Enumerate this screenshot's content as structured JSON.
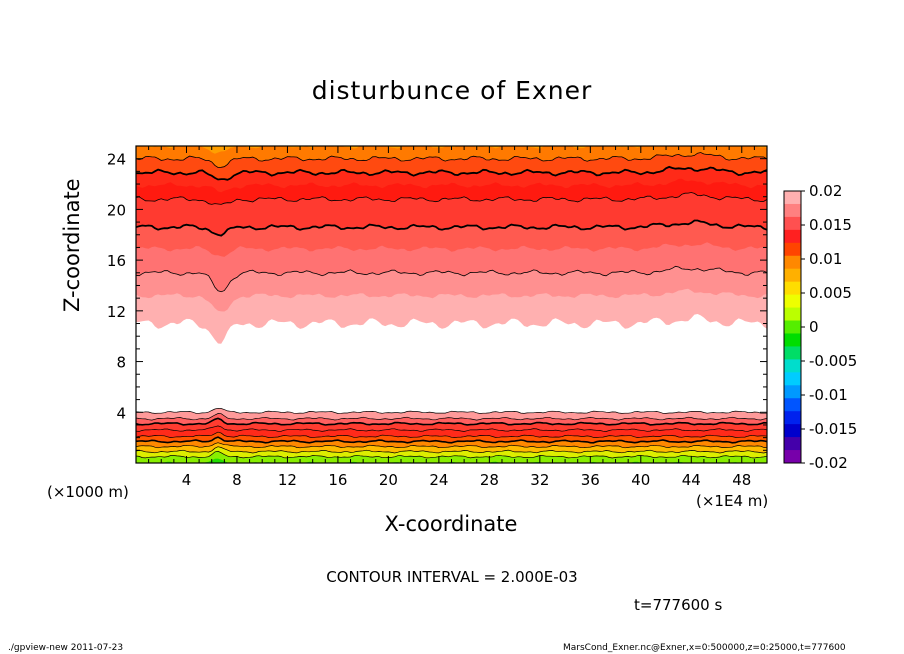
{
  "title": "disturbunce of Exner",
  "chart_data": {
    "type": "heatmap",
    "title": "disturbunce of Exner",
    "xlabel": "X-coordinate",
    "ylabel": "Z-coordinate",
    "x_unit_label": "(×1E4 m)",
    "y_unit_label": "(×1000 m)",
    "xlim": [
      0,
      50
    ],
    "ylim": [
      0,
      25
    ],
    "x_ticks": [
      "4",
      "8",
      "12",
      "16",
      "20",
      "24",
      "28",
      "32",
      "36",
      "40",
      "44",
      "48"
    ],
    "y_ticks": [
      "4",
      "8",
      "12",
      "16",
      "20",
      "24"
    ],
    "colorbar_ticks": [
      "0.02",
      "0.015",
      "0.01",
      "0.005",
      "0",
      "-0.005",
      "-0.01",
      "-0.015",
      "-0.02"
    ],
    "colorbar_range": [
      -0.02,
      0.02
    ],
    "contour_interval": "CONTOUR INTERVAL = 2.000E-03",
    "bands_top": [
      {
        "z": 25.0,
        "color": "#ff9f00"
      },
      {
        "z": 24.0,
        "color": "#ff7a00"
      },
      {
        "z": 22.9,
        "color": "#ff4a10"
      },
      {
        "z": 21.9,
        "color": "#ff2a18"
      },
      {
        "z": 20.8,
        "color": "#ff1a10"
      },
      {
        "z": 18.6,
        "color": "#ff3a30"
      },
      {
        "z": 16.9,
        "color": "#ff5a50"
      },
      {
        "z": 15.0,
        "color": "#ff7272"
      },
      {
        "z": 13.2,
        "color": "#ff9090"
      },
      {
        "z": 11.0,
        "color": "#ffb0b0"
      }
    ],
    "bands_bottom": [
      {
        "z": 0.0,
        "color": "#22dd00"
      },
      {
        "z": 0.5,
        "color": "#88ee00"
      },
      {
        "z": 0.9,
        "color": "#ddee00"
      },
      {
        "z": 1.3,
        "color": "#ffbb00"
      },
      {
        "z": 1.7,
        "color": "#ff8800"
      },
      {
        "z": 2.1,
        "color": "#ff5500"
      },
      {
        "z": 2.6,
        "color": "#ff2a1a"
      },
      {
        "z": 3.1,
        "color": "#ff3c30"
      },
      {
        "z": 3.5,
        "color": "#ff6060"
      },
      {
        "z": 4.0,
        "color": "#ff9a9a"
      },
      {
        "z": 4.5,
        "color": "#ffffff"
      }
    ],
    "contour_lines_top": [
      {
        "z": 24.0,
        "bold": false
      },
      {
        "z": 22.9,
        "bold": true
      },
      {
        "z": 20.8,
        "bold": false
      },
      {
        "z": 18.6,
        "bold": true
      },
      {
        "z": 15.0,
        "bold": false
      }
    ],
    "contour_lines_bottom": [
      {
        "z": 0.5,
        "bold": false
      },
      {
        "z": 0.9,
        "bold": false
      },
      {
        "z": 1.3,
        "bold": false
      },
      {
        "z": 1.7,
        "bold": true
      },
      {
        "z": 2.1,
        "bold": false
      },
      {
        "z": 2.6,
        "bold": false
      },
      {
        "z": 3.1,
        "bold": true
      },
      {
        "z": 3.5,
        "bold": false
      },
      {
        "z": 4.0,
        "bold": false
      }
    ],
    "colorbar_colors": [
      "#ffb0b0",
      "#ff8080",
      "#ff5050",
      "#ff2020",
      "#ff4400",
      "#ff8800",
      "#ffb000",
      "#ffdd00",
      "#eeff00",
      "#bbff00",
      "#55ee00",
      "#00dd00",
      "#00dd66",
      "#00ddcc",
      "#00ccff",
      "#0099ff",
      "#0055ff",
      "#0022ee",
      "#0000cc",
      "#4400aa",
      "#7700aa"
    ]
  },
  "footer": {
    "time": "t=777600 s",
    "left": "./gpview-new  2011-07-23",
    "right": "MarsCond_Exner.nc@Exner,x=0:500000,z=0:25000,t=777600"
  }
}
